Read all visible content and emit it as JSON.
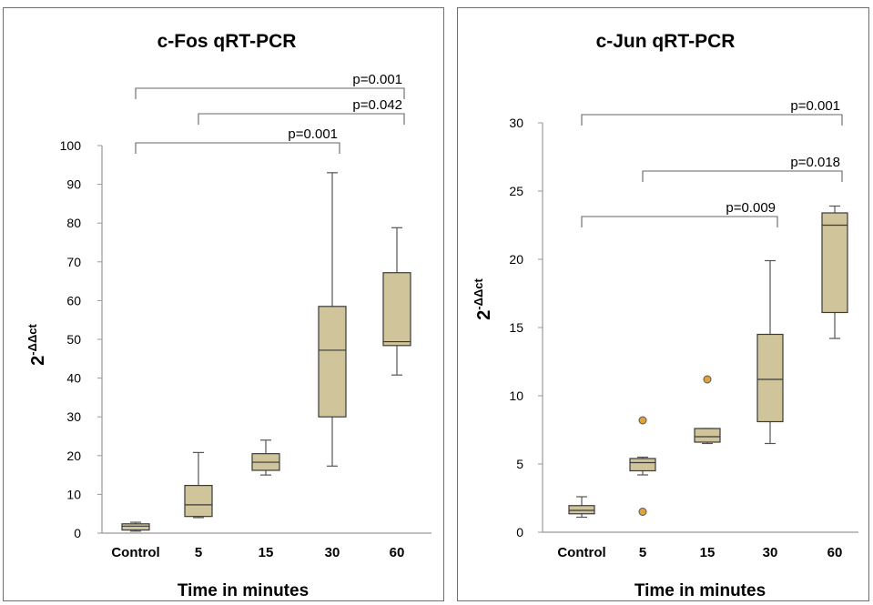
{
  "chart_data": [
    {
      "type": "box",
      "title": "c-Fos qRT-PCR",
      "ylabel_base": "2",
      "ylabel_sup": "-ΔΔct",
      "xlabel": "Time in minutes",
      "categories": [
        "Control",
        "5",
        "15",
        "30",
        "60"
      ],
      "ylim": [
        0,
        100
      ],
      "yticks": [
        "0",
        "10",
        "20",
        "30",
        "40",
        "50",
        "60",
        "70",
        "80",
        "90",
        "100"
      ],
      "boxes": [
        {
          "min": 0.5,
          "q1": 0.8,
          "median": 1.8,
          "q3": 2.4,
          "max": 2.8,
          "outliers": []
        },
        {
          "min": 4,
          "q1": 4.3,
          "median": 7.3,
          "q3": 12.3,
          "max": 20.8,
          "outliers": []
        },
        {
          "min": 15,
          "q1": 16.2,
          "median": 18.3,
          "q3": 20.5,
          "max": 24,
          "outliers": []
        },
        {
          "min": 17.3,
          "q1": 30,
          "median": 47.2,
          "q3": 58.5,
          "max": 93,
          "outliers": []
        },
        {
          "min": 40.8,
          "q1": 48.4,
          "median": 49.4,
          "q3": 67.2,
          "max": 78.8,
          "outliers": []
        }
      ],
      "comparisons": [
        {
          "from": 0,
          "to": 4,
          "label": "p=0.001",
          "level": 2
        },
        {
          "from": 1,
          "to": 4,
          "label": "p=0.042",
          "level": 1
        },
        {
          "from": 0,
          "to": 3,
          "label": "p=0.001",
          "level": 0
        }
      ],
      "box_fill": "#cfc49a",
      "box_stroke": "#3a3a3a"
    },
    {
      "type": "box",
      "title": "c-Jun qRT-PCR",
      "ylabel_base": "2",
      "ylabel_sup": "-ΔΔct",
      "xlabel": "Time in minutes",
      "categories": [
        "Control",
        "5",
        "15",
        "30",
        "60"
      ],
      "ylim": [
        0,
        30
      ],
      "yticks": [
        "0",
        "5",
        "10",
        "15",
        "20",
        "25",
        "30"
      ],
      "boxes": [
        {
          "min": 1.1,
          "q1": 1.35,
          "median": 1.6,
          "q3": 1.95,
          "max": 2.6,
          "outliers": []
        },
        {
          "min": 4.2,
          "q1": 4.5,
          "median": 5.1,
          "q3": 5.4,
          "max": 5.5,
          "outliers": [
            8.2,
            1.5
          ]
        },
        {
          "min": 6.5,
          "q1": 6.6,
          "median": 7.0,
          "q3": 7.6,
          "max": 7.6,
          "outliers": [
            11.2
          ]
        },
        {
          "min": 6.5,
          "q1": 8.1,
          "median": 11.2,
          "q3": 14.5,
          "max": 19.9,
          "outliers": []
        },
        {
          "min": 14.2,
          "q1": 16.1,
          "median": 22.5,
          "q3": 23.4,
          "max": 23.9,
          "outliers": []
        }
      ],
      "comparisons": [
        {
          "from": 0,
          "to": 4,
          "label": "p=0.001",
          "level": 2
        },
        {
          "from": 1,
          "to": 4,
          "label": "p=0.018",
          "level": 1
        },
        {
          "from": 0,
          "to": 3,
          "label": "p=0.009",
          "level": 0
        }
      ],
      "box_fill": "#cfc49a",
      "box_stroke": "#3a3a3a",
      "outlier_fill": "#e0a23a"
    }
  ]
}
